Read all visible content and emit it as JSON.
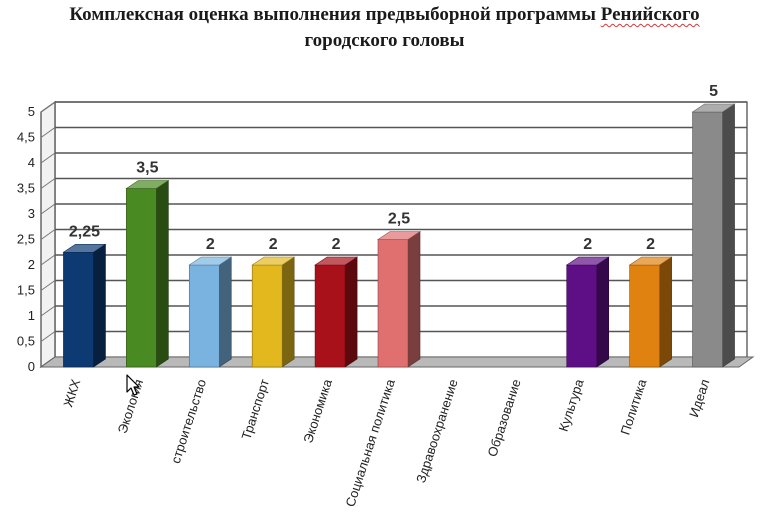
{
  "title": {
    "line1_before": "Комплексная оценка выполнения предвыборной программы ",
    "line1_word": "Ренийского",
    "line2": "городского головы"
  },
  "chart_data": {
    "type": "bar",
    "title": "Комплексная оценка выполнения предвыборной программы Ренийского городского головы",
    "xlabel": "",
    "ylabel": "",
    "ylim": [
      0,
      5
    ],
    "yticks": [
      "0",
      "0,5",
      "1",
      "1,5",
      "2",
      "2,5",
      "3",
      "3,5",
      "4",
      "4,5",
      "5"
    ],
    "grid": true,
    "legend": "none",
    "categories": [
      "ЖКХ",
      "Экология",
      "строительство",
      "Транспорт",
      "Экономика",
      "Социальная политика",
      "Здравоохранение",
      "Образование",
      "Культура",
      "Политика",
      "Идеал"
    ],
    "values": [
      2.25,
      3.5,
      2,
      2,
      2,
      2.5,
      null,
      null,
      2,
      2,
      5
    ],
    "value_labels": [
      "2,25",
      "3,5",
      "2",
      "2",
      "2",
      "2,5",
      "",
      "",
      "2",
      "2",
      "5"
    ],
    "colors": [
      "#0d3a73",
      "#4a8a22",
      "#7ab3e0",
      "#e2b81e",
      "#a8101a",
      "#e07070",
      "#999999",
      "#999999",
      "#5e0f86",
      "#e0820f",
      "#8a8a8a"
    ]
  }
}
